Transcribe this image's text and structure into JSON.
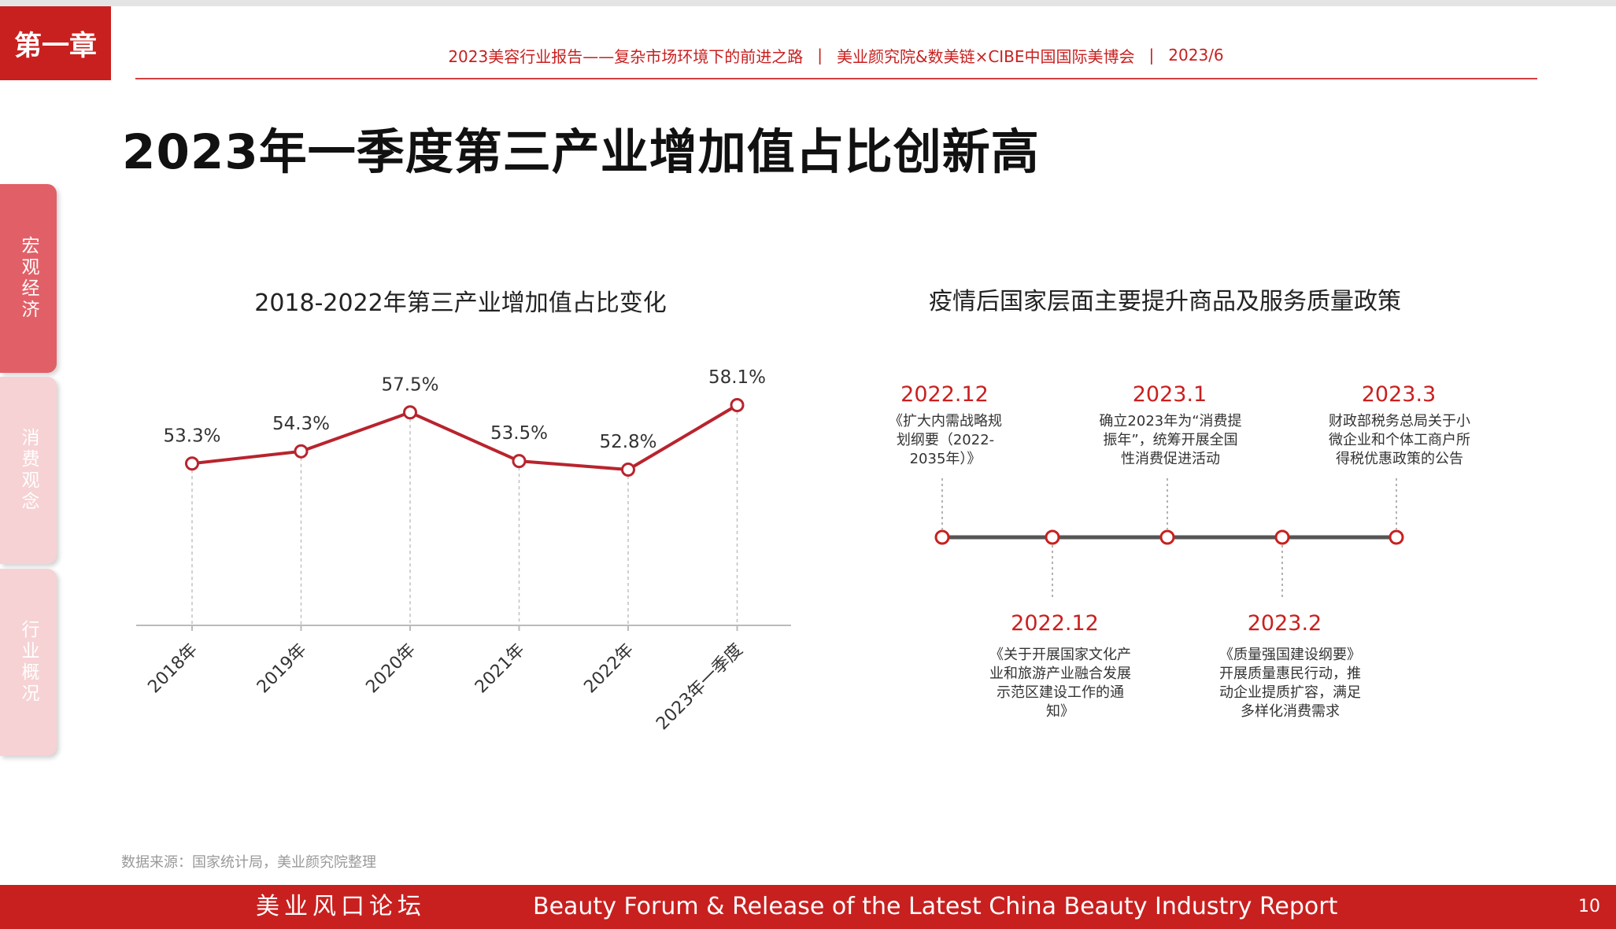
{
  "chapter_tag": "第一章",
  "header": {
    "report": "2023美容行业报告——复杂市场环境下的前进之路",
    "org": "美业颜究院&数美链×CIBE中国国际美博会",
    "date": "2023/6",
    "sep": "|"
  },
  "page_title": "2023年一季度第三产业增加值占比创新高",
  "side_tabs": [
    {
      "label": "宏观经济",
      "active": true
    },
    {
      "label": "消费观念",
      "active": false
    },
    {
      "label": "行业概况",
      "active": false
    }
  ],
  "chart_data": {
    "type": "line",
    "title": "2018-2022年第三产业增加值占比变化",
    "categories": [
      "2018年",
      "2019年",
      "2020年",
      "2021年",
      "2022年",
      "2023年一季度"
    ],
    "values": [
      53.3,
      54.3,
      57.5,
      53.5,
      52.8,
      58.1
    ],
    "data_labels": [
      "53.3%",
      "54.3%",
      "57.5%",
      "53.5%",
      "52.8%",
      "58.1%"
    ],
    "ylim": [
      40,
      60
    ],
    "grid": false,
    "color": "#b8242e"
  },
  "timeline": {
    "title": "疫情后国家层面主要提升商品及服务质量政策",
    "events": [
      {
        "date": "2022.12",
        "position": "top",
        "text": [
          "《扩大内需战略规",
          "划纲要（2022-",
          "2035年）》"
        ]
      },
      {
        "date": "2022.12",
        "position": "bottom",
        "text": [
          "《关于开展国家文化产",
          "业和旅游产业融合发展",
          "示范区建设工作的通",
          "知》"
        ]
      },
      {
        "date": "2023.1",
        "position": "top",
        "text": [
          "确立2023年为“消费提",
          "振年”，统筹开展全国",
          "性消费促进活动"
        ]
      },
      {
        "date": "2023.2",
        "position": "bottom",
        "text": [
          "《质量强国建设纲要》",
          "开展质量惠民行动，推",
          "动企业提质扩容，满足",
          "多样化消费需求"
        ]
      },
      {
        "date": "2023.3",
        "position": "top",
        "text": [
          "财政部税务总局关于小",
          "微企业和个体工商户所",
          "得税优惠政策的公告"
        ]
      }
    ]
  },
  "source": "数据来源：国家统计局，美业颜究院整理",
  "footer": {
    "left": "美业风口论坛",
    "center": "Beauty Forum & Release of the Latest China Beauty Industry Report",
    "page": "10"
  },
  "colors": {
    "brand_red": "#c8201f",
    "line_red": "#b8242e",
    "tab_active": "#e16068",
    "tab_inactive": "#f6d2d4"
  }
}
